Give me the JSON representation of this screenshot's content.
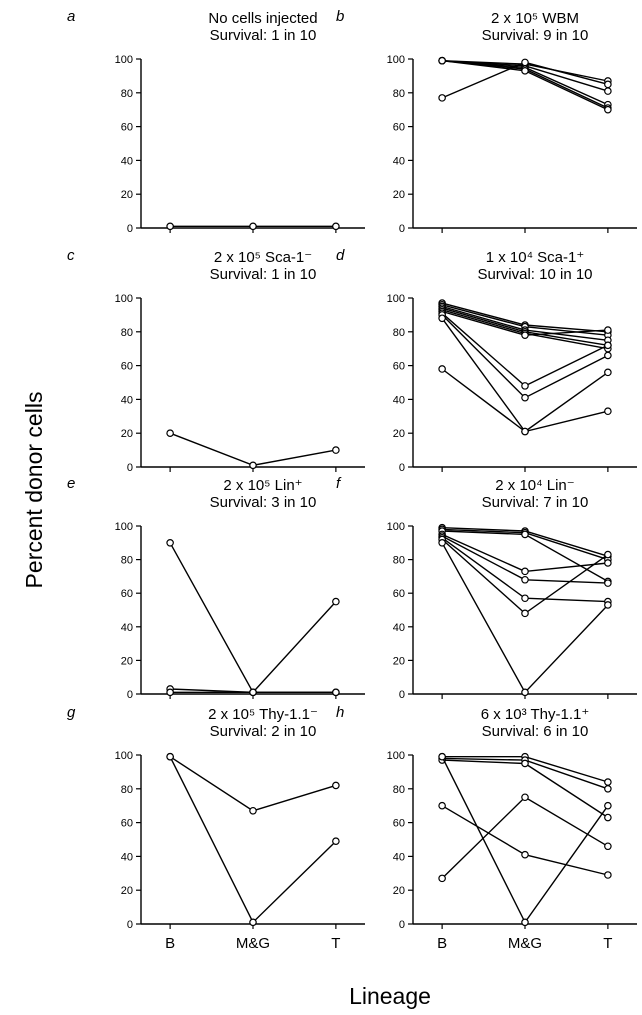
{
  "chart_data": {
    "type": "line",
    "ylabel": "Percent donor cells",
    "xlabel": "Lineage",
    "categories": [
      "B",
      "M&G",
      "T"
    ],
    "ylim": [
      0,
      100
    ],
    "yticks": [
      "0",
      "20",
      "40",
      "60",
      "80",
      "100"
    ],
    "grid": false,
    "panels": [
      {
        "letter": "a",
        "title_line1": "No cells injected",
        "title_line2": "Survival: 1 in 10",
        "series": [
          {
            "values": [
              1,
              1,
              1
            ]
          }
        ]
      },
      {
        "letter": "b",
        "title_line1": "2 x 10⁵  WBM",
        "title_line2": "Survival: 9 in 10",
        "series": [
          {
            "values": [
              99,
              97,
              87
            ]
          },
          {
            "values": [
              99,
              96,
              81
            ]
          },
          {
            "values": [
              99,
              95,
              73
            ]
          },
          {
            "values": [
              99,
              94,
              71
            ]
          },
          {
            "values": [
              99,
              93,
              70
            ]
          },
          {
            "values": [
              77,
              98,
              85
            ]
          }
        ]
      },
      {
        "letter": "c",
        "title_line1": "2 x 10⁵  Sca-1⁻",
        "title_line2": "Survival: 1 in 10",
        "series": [
          {
            "values": [
              20,
              1,
              10
            ]
          }
        ]
      },
      {
        "letter": "d",
        "title_line1": "1 x 10⁴  Sca-1⁺",
        "title_line2": "Survival: 10 in 10",
        "series": [
          {
            "values": [
              97,
              84,
              80
            ]
          },
          {
            "values": [
              96,
              83,
              78
            ]
          },
          {
            "values": [
              95,
              81,
              75
            ]
          },
          {
            "values": [
              94,
              80,
              72
            ]
          },
          {
            "values": [
              93,
              79,
              70
            ]
          },
          {
            "values": [
              92,
              78,
              81
            ]
          },
          {
            "values": [
              91,
              48,
              72
            ]
          },
          {
            "values": [
              90,
              41,
              66
            ]
          },
          {
            "values": [
              88,
              21,
              56
            ]
          },
          {
            "values": [
              58,
              21,
              33
            ]
          }
        ]
      },
      {
        "letter": "e",
        "title_line1": "2 x 10⁵  Lin⁺",
        "title_line2": "Survival: 3 in 10",
        "series": [
          {
            "values": [
              90,
              1,
              55
            ]
          },
          {
            "values": [
              3,
              1,
              1
            ]
          },
          {
            "values": [
              1,
              1,
              1
            ]
          }
        ]
      },
      {
        "letter": "f",
        "title_line1": "2 x 10⁴  Lin⁻",
        "title_line2": "Survival: 7 in 10",
        "series": [
          {
            "values": [
              99,
              97,
              82
            ]
          },
          {
            "values": [
              98,
              96,
              80
            ]
          },
          {
            "values": [
              97,
              95,
              67
            ]
          },
          {
            "values": [
              95,
              73,
              78
            ]
          },
          {
            "values": [
              94,
              68,
              66
            ]
          },
          {
            "values": [
              93,
              57,
              55
            ]
          },
          {
            "values": [
              92,
              48,
              83
            ]
          },
          {
            "values": [
              90,
              1,
              53
            ]
          }
        ]
      },
      {
        "letter": "g",
        "title_line1": "2 x 10⁵  Thy-1.1⁻",
        "title_line2": "Survival: 2 in 10",
        "series": [
          {
            "values": [
              99,
              67,
              82
            ]
          },
          {
            "values": [
              99,
              1,
              49
            ]
          }
        ]
      },
      {
        "letter": "h",
        "title_line1": "6 x 10³  Thy-1.1⁺",
        "title_line2": "Survival: 6 in 10",
        "series": [
          {
            "values": [
              99,
              99,
              84
            ]
          },
          {
            "values": [
              98,
              97,
              80
            ]
          },
          {
            "values": [
              97,
              95,
              63
            ]
          },
          {
            "values": [
              99,
              1,
              70
            ]
          },
          {
            "values": [
              70,
              41,
              29
            ]
          },
          {
            "values": [
              27,
              75,
              46
            ]
          }
        ]
      }
    ]
  }
}
